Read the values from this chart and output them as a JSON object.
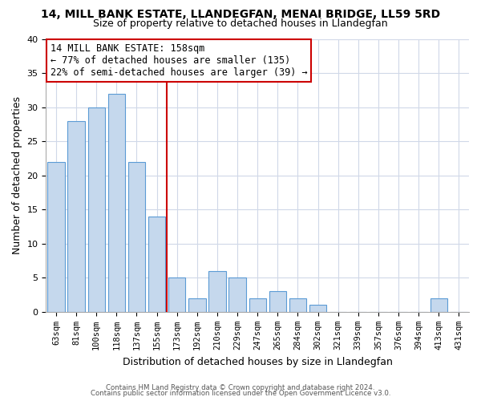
{
  "title": "14, MILL BANK ESTATE, LLANDEGFAN, MENAI BRIDGE, LL59 5RD",
  "subtitle": "Size of property relative to detached houses in Llandegfan",
  "xlabel": "Distribution of detached houses by size in Llandegfan",
  "ylabel": "Number of detached properties",
  "bar_labels": [
    "63sqm",
    "81sqm",
    "100sqm",
    "118sqm",
    "137sqm",
    "155sqm",
    "173sqm",
    "192sqm",
    "210sqm",
    "229sqm",
    "247sqm",
    "265sqm",
    "284sqm",
    "302sqm",
    "321sqm",
    "339sqm",
    "357sqm",
    "376sqm",
    "394sqm",
    "413sqm",
    "431sqm"
  ],
  "bar_values": [
    22,
    28,
    30,
    32,
    22,
    14,
    5,
    2,
    6,
    5,
    2,
    3,
    2,
    1,
    0,
    0,
    0,
    0,
    0,
    2,
    0
  ],
  "bar_color": "#c5d8ed",
  "bar_edge_color": "#5b9bd5",
  "vline_color": "#cc0000",
  "annotation_title": "14 MILL BANK ESTATE: 158sqm",
  "annotation_line1": "← 77% of detached houses are smaller (135)",
  "annotation_line2": "22% of semi-detached houses are larger (39) →",
  "annotation_box_color": "#ffffff",
  "annotation_box_edge": "#cc0000",
  "ylim": [
    0,
    40
  ],
  "yticks": [
    0,
    5,
    10,
    15,
    20,
    25,
    30,
    35,
    40
  ],
  "footer1": "Contains HM Land Registry data © Crown copyright and database right 2024.",
  "footer2": "Contains public sector information licensed under the Open Government Licence v3.0.",
  "background_color": "#ffffff",
  "grid_color": "#d0d8e8"
}
